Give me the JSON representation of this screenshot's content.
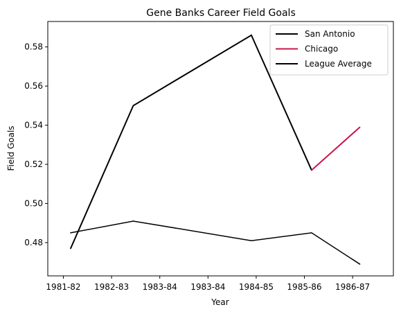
{
  "chart_data": {
    "type": "line",
    "title": "Gene Banks Career Field Goals",
    "xlabel": "Year",
    "ylabel": "Field Goals",
    "xlim": [
      0,
      6.3
    ],
    "ylim": [
      0.463,
      0.593
    ],
    "xticks": [
      {
        "pos": 0,
        "label": "1981-82"
      },
      {
        "pos": 1,
        "label": "1982-83"
      },
      {
        "pos": 2,
        "label": "1983-84"
      },
      {
        "pos": 3,
        "label": "1983-84"
      },
      {
        "pos": 4,
        "label": "1984-85"
      },
      {
        "pos": 5,
        "label": "1985-86"
      },
      {
        "pos": 6,
        "label": "1986-87"
      }
    ],
    "yticks": [
      0.48,
      0.5,
      0.52,
      0.54,
      0.56,
      0.58
    ],
    "ytick_labels": [
      "0.48",
      "0.50",
      "0.52",
      "0.54",
      "0.56",
      "0.58"
    ],
    "series": [
      {
        "name": "San Antonio",
        "color": "#000000",
        "x": [
          0.15,
          1.45,
          3.9,
          5.15
        ],
        "y": [
          0.477,
          0.55,
          0.586,
          0.517
        ]
      },
      {
        "name": "Chicago",
        "color": "#c8174a",
        "x": [
          5.15,
          6.15
        ],
        "y": [
          0.517,
          0.539
        ]
      },
      {
        "name": "League Average",
        "color": "#000000",
        "x": [
          0.15,
          1.45,
          3.9,
          5.15,
          6.15
        ],
        "y": [
          0.485,
          0.491,
          0.481,
          0.485,
          0.469
        ]
      }
    ],
    "grid": false,
    "legend": "top-right"
  }
}
